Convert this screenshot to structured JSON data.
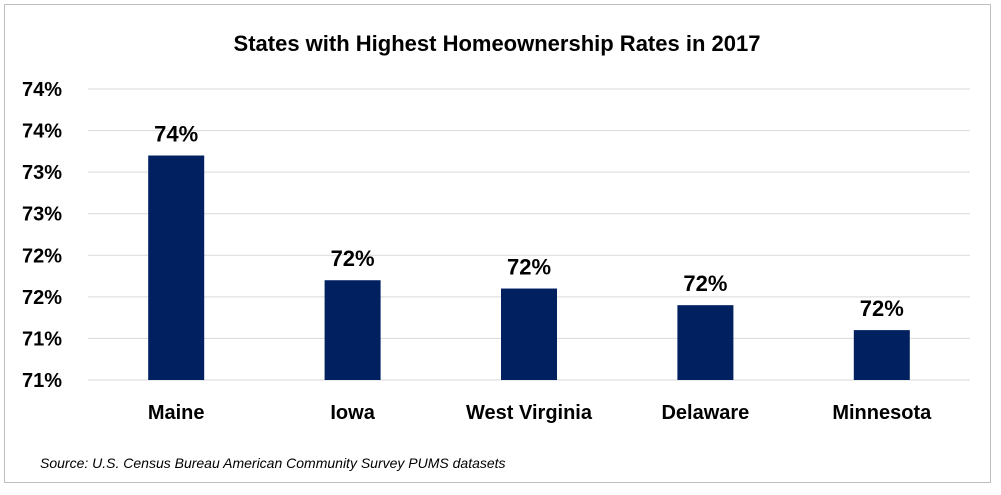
{
  "chart_data": {
    "type": "bar",
    "title": "States with Highest Homeownership Rates in 2017",
    "xlabel": "",
    "ylabel": "",
    "categories": [
      "Maine",
      "Iowa",
      "West Virginia",
      "Delaware",
      "Minnesota"
    ],
    "values": [
      73.7,
      72.2,
      72.1,
      71.9,
      71.6
    ],
    "data_labels": [
      "74%",
      "72%",
      "72%",
      "72%",
      "72%"
    ],
    "ylim": [
      71.0,
      74.5
    ],
    "y_ticks": [
      71.0,
      71.5,
      72.0,
      72.5,
      73.0,
      73.5,
      74.0,
      74.5
    ],
    "y_tick_labels": [
      "71%",
      "71%",
      "72%",
      "72%",
      "73%",
      "73%",
      "74%",
      "74%"
    ],
    "grid": true,
    "legend": "none",
    "bar_color": "#002060"
  },
  "source_note": "Source: U.S. Census Bureau American Community Survey PUMS datasets"
}
